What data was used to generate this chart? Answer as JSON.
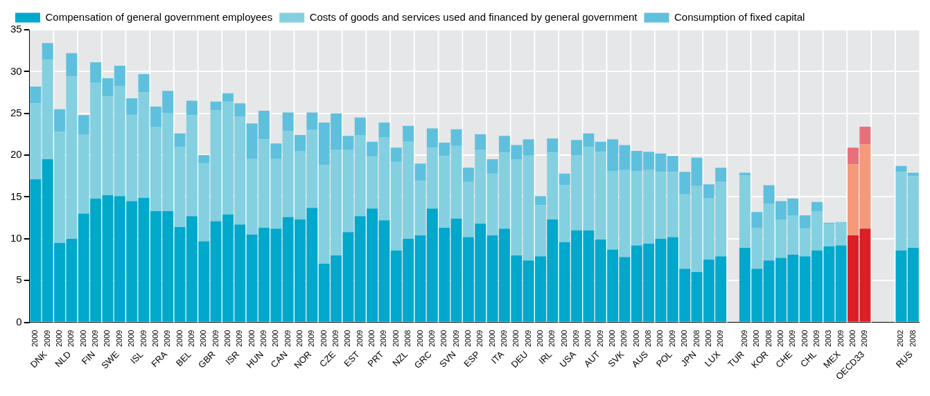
{
  "chart_data": {
    "type": "bar",
    "stacked": true,
    "legend": "top",
    "grid": true,
    "categories": [
      "2000",
      "2009",
      "2000",
      "2009",
      "2000",
      "2009",
      "2000",
      "2009",
      "2000",
      "2009",
      "2000",
      "2009",
      "2000",
      "2009",
      "2000",
      "2009",
      "2000",
      "2009",
      "2000",
      "2009",
      "2000",
      "2009",
      "2000",
      "2009",
      "2000",
      "2009",
      "2000",
      "2009",
      "2000",
      "2009",
      "2000",
      "2008",
      "2000",
      "2009",
      "2000",
      "2009",
      "2000",
      "2009",
      "2000",
      "2009",
      "2000",
      "2009",
      "2000",
      "2009",
      "2000",
      "2009",
      "2000",
      "2009",
      "2000",
      "2009",
      "2000",
      "2008",
      "2000",
      "2009",
      "2000",
      "2008",
      "2000",
      "2009",
      null,
      "2009",
      "2000",
      "2008",
      "2000",
      "2009",
      "2000",
      "2009",
      "2003",
      "2009",
      "2000",
      "2009",
      null,
      null,
      "2002",
      "2008"
    ],
    "annotations": [
      "DNK",
      "NLD",
      "FIN",
      "SWE",
      "ISL",
      "FRA",
      "BEL",
      "GBR",
      "ISR",
      "HUN",
      "CAN",
      "NOR",
      "CZE",
      "EST",
      "PRT",
      "NZL",
      "GRC",
      "SVN",
      "ESP",
      "ITA",
      "DEU",
      "IRL",
      "USA",
      "AUT",
      "SVK",
      "AUS",
      "POL",
      "JPN",
      "LUX",
      "TUR",
      "KOR",
      "CHE",
      "CHL",
      "MEX",
      "OECD33",
      "RUS"
    ],
    "ylim": [
      0,
      35
    ],
    "yticks": [
      0,
      5,
      10,
      15,
      20,
      25,
      30,
      35
    ],
    "series": [
      {
        "name": "Compensation of general government employees",
        "color": "#00a8cc",
        "colors": [
          "#00a8cc",
          "#00a8cc",
          "#00a8cc",
          "#00a8cc",
          "#00a8cc",
          "#00a8cc",
          "#00a8cc",
          "#00a8cc",
          "#00a8cc",
          "#00a8cc",
          "#00a8cc",
          "#00a8cc",
          "#00a8cc",
          "#00a8cc",
          "#00a8cc",
          "#00a8cc",
          "#00a8cc",
          "#00a8cc",
          "#00a8cc",
          "#00a8cc",
          "#00a8cc",
          "#00a8cc",
          "#00a8cc",
          "#00a8cc",
          "#00a8cc",
          "#00a8cc",
          "#00a8cc",
          "#00a8cc",
          "#00a8cc",
          "#00a8cc",
          "#00a8cc",
          "#00a8cc",
          "#00a8cc",
          "#00a8cc",
          "#00a8cc",
          "#00a8cc",
          "#00a8cc",
          "#00a8cc",
          "#00a8cc",
          "#00a8cc",
          "#00a8cc",
          "#00a8cc",
          "#00a8cc",
          "#00a8cc",
          "#00a8cc",
          "#00a8cc",
          "#00a8cc",
          "#00a8cc",
          "#00a8cc",
          "#00a8cc",
          "#00a8cc",
          "#00a8cc",
          "#00a8cc",
          "#00a8cc",
          "#00a8cc",
          "#00a8cc",
          "#00a8cc",
          "#00a8cc",
          "#00a8cc",
          "#00a8cc",
          "#00a8cc",
          "#00a8cc",
          "#00a8cc",
          "#00a8cc",
          "#00a8cc",
          "#00a8cc",
          "#00a8cc",
          "#00a8cc",
          "#dc1e26",
          "#dc1e26",
          "#00a8cc",
          "#00a8cc",
          "#00a8cc",
          "#00a8cc"
        ],
        "values": [
          17.1,
          19.5,
          9.5,
          10.0,
          13.0,
          14.8,
          15.2,
          15.1,
          14.5,
          14.9,
          13.3,
          13.3,
          11.4,
          12.7,
          9.7,
          12.1,
          12.9,
          11.7,
          10.5,
          11.3,
          11.2,
          12.6,
          12.3,
          13.7,
          7.0,
          8.0,
          10.8,
          12.7,
          13.6,
          12.2,
          8.6,
          10.0,
          10.4,
          13.6,
          11.3,
          12.4,
          10.2,
          11.8,
          10.4,
          11.2,
          8.0,
          7.4,
          7.9,
          12.3,
          9.6,
          11.0,
          11.0,
          9.9,
          8.7,
          7.8,
          9.2,
          9.4,
          10.0,
          10.2,
          6.4,
          6.0,
          7.5,
          7.9,
          null,
          8.9,
          6.4,
          7.4,
          7.7,
          8.1,
          7.9,
          8.6,
          9.1,
          9.2,
          10.4,
          11.2,
          null,
          null,
          8.6,
          8.9
        ]
      },
      {
        "name": "Costs of goods and services used and financed by general government",
        "color": "#84d0e0",
        "colors": [
          "#84d0e0",
          "#84d0e0",
          "#84d0e0",
          "#84d0e0",
          "#84d0e0",
          "#84d0e0",
          "#84d0e0",
          "#84d0e0",
          "#84d0e0",
          "#84d0e0",
          "#84d0e0",
          "#84d0e0",
          "#84d0e0",
          "#84d0e0",
          "#84d0e0",
          "#84d0e0",
          "#84d0e0",
          "#84d0e0",
          "#84d0e0",
          "#84d0e0",
          "#84d0e0",
          "#84d0e0",
          "#84d0e0",
          "#84d0e0",
          "#84d0e0",
          "#84d0e0",
          "#84d0e0",
          "#84d0e0",
          "#84d0e0",
          "#84d0e0",
          "#84d0e0",
          "#84d0e0",
          "#84d0e0",
          "#84d0e0",
          "#84d0e0",
          "#84d0e0",
          "#84d0e0",
          "#84d0e0",
          "#84d0e0",
          "#84d0e0",
          "#84d0e0",
          "#84d0e0",
          "#84d0e0",
          "#84d0e0",
          "#84d0e0",
          "#84d0e0",
          "#84d0e0",
          "#84d0e0",
          "#84d0e0",
          "#84d0e0",
          "#84d0e0",
          "#84d0e0",
          "#84d0e0",
          "#84d0e0",
          "#84d0e0",
          "#84d0e0",
          "#84d0e0",
          "#84d0e0",
          "#84d0e0",
          "#84d0e0",
          "#84d0e0",
          "#84d0e0",
          "#84d0e0",
          "#84d0e0",
          "#84d0e0",
          "#84d0e0",
          "#84d0e0",
          "#84d0e0",
          "#f4997a",
          "#f4997a",
          "#84d0e0",
          "#84d0e0",
          "#84d0e0",
          "#84d0e0"
        ],
        "values": [
          9.1,
          11.9,
          13.3,
          19.4,
          9.5,
          13.9,
          11.8,
          13.2,
          10.3,
          12.6,
          10.1,
          11.7,
          9.6,
          12.1,
          9.3,
          13.3,
          13.5,
          12.9,
          9.1,
          10.6,
          8.4,
          10.3,
          8.2,
          9.3,
          11.8,
          12.6,
          9.8,
          9.7,
          6.2,
          9.9,
          10.6,
          11.6,
          6.5,
          7.3,
          8.6,
          8.7,
          6.6,
          8.8,
          7.4,
          9.1,
          11.5,
          12.6,
          6.1,
          8.0,
          6.8,
          9.0,
          10.0,
          10.5,
          9.4,
          10.4,
          8.9,
          8.8,
          8.0,
          7.8,
          8.9,
          10.3,
          7.3,
          8.9,
          null,
          8.7,
          4.9,
          6.8,
          4.6,
          4.7,
          3.3,
          4.7,
          2.7,
          2.7,
          8.5,
          10.1,
          null,
          null,
          9.4,
          8.6
        ]
      },
      {
        "name": "Consumption of fixed capital",
        "color": "#5fc0de",
        "colors": [
          "#5fc0de",
          "#5fc0de",
          "#5fc0de",
          "#5fc0de",
          "#5fc0de",
          "#5fc0de",
          "#5fc0de",
          "#5fc0de",
          "#5fc0de",
          "#5fc0de",
          "#5fc0de",
          "#5fc0de",
          "#5fc0de",
          "#5fc0de",
          "#5fc0de",
          "#5fc0de",
          "#5fc0de",
          "#5fc0de",
          "#5fc0de",
          "#5fc0de",
          "#5fc0de",
          "#5fc0de",
          "#5fc0de",
          "#5fc0de",
          "#5fc0de",
          "#5fc0de",
          "#5fc0de",
          "#5fc0de",
          "#5fc0de",
          "#5fc0de",
          "#5fc0de",
          "#5fc0de",
          "#5fc0de",
          "#5fc0de",
          "#5fc0de",
          "#5fc0de",
          "#5fc0de",
          "#5fc0de",
          "#5fc0de",
          "#5fc0de",
          "#5fc0de",
          "#5fc0de",
          "#5fc0de",
          "#5fc0de",
          "#5fc0de",
          "#5fc0de",
          "#5fc0de",
          "#5fc0de",
          "#5fc0de",
          "#5fc0de",
          "#5fc0de",
          "#5fc0de",
          "#5fc0de",
          "#5fc0de",
          "#5fc0de",
          "#5fc0de",
          "#5fc0de",
          "#5fc0de",
          "#5fc0de",
          "#5fc0de",
          "#5fc0de",
          "#5fc0de",
          "#5fc0de",
          "#5fc0de",
          "#5fc0de",
          "#5fc0de",
          "#5fc0de",
          "#5fc0de",
          "#e8707a",
          "#e8707a",
          "#5fc0de",
          "#5fc0de",
          "#5fc0de",
          "#5fc0de"
        ],
        "values": [
          2.0,
          2.0,
          2.7,
          2.8,
          2.3,
          2.4,
          2.2,
          2.4,
          2.0,
          2.2,
          2.4,
          2.7,
          1.6,
          1.7,
          1.0,
          1.0,
          1.0,
          1.6,
          4.2,
          3.4,
          1.8,
          2.2,
          1.9,
          2.1,
          5.1,
          4.4,
          1.7,
          2.1,
          1.8,
          1.8,
          1.7,
          1.9,
          2.1,
          2.3,
          1.6,
          2.0,
          1.7,
          1.9,
          1.7,
          2.0,
          1.7,
          1.9,
          1.1,
          1.7,
          1.4,
          1.8,
          1.6,
          1.2,
          3.8,
          3.0,
          2.4,
          2.2,
          2.2,
          1.9,
          2.7,
          3.4,
          1.7,
          1.7,
          null,
          0.3,
          1.9,
          2.2,
          2.2,
          2.0,
          1.6,
          1.1,
          0.1,
          0.1,
          2.0,
          2.1,
          null,
          null,
          0.7,
          0.4
        ]
      }
    ]
  }
}
